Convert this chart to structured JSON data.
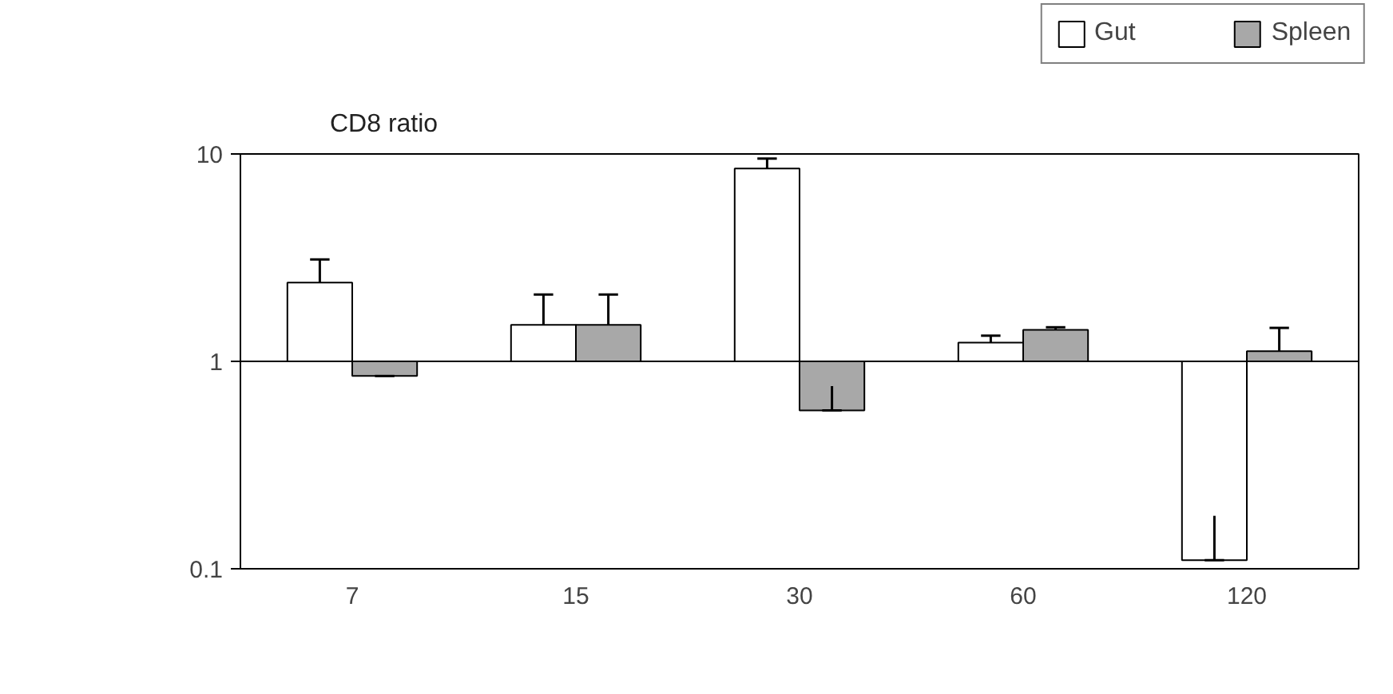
{
  "chart_data": {
    "type": "bar",
    "ylabel": "CD8 ratio",
    "categories": [
      "7",
      "15",
      "30",
      "60",
      "120"
    ],
    "series": [
      {
        "name": "Gut",
        "color": "#ffffff",
        "base": [
          1,
          1,
          1,
          1,
          1
        ],
        "values": [
          1.4,
          0.5,
          7.5,
          0.23,
          -0.89
        ],
        "errors": [
          [
            2.4,
            3.1
          ],
          [
            1.5,
            2.1
          ],
          [
            8.5,
            9.5
          ],
          [
            1.23,
            1.33
          ],
          [
            0.11,
            0.18
          ]
        ]
      },
      {
        "name": "Spleen",
        "color": "#a8a8a8",
        "base": [
          1,
          1,
          1,
          1,
          1
        ],
        "values": [
          -0.15,
          0.5,
          -0.42,
          0.42,
          0.12
        ],
        "errors": [
          [
            0.85,
            0.85
          ],
          [
            1.5,
            2.1
          ],
          [
            0.58,
            0.76
          ],
          [
            1.42,
            1.46
          ],
          [
            1.12,
            1.45
          ]
        ]
      }
    ],
    "log": true,
    "ylim": [
      0.1,
      10
    ],
    "yticks": [
      0.1,
      1,
      10
    ],
    "ref_lines": [
      {
        "axis": "y",
        "value": 1
      }
    ],
    "grid": false,
    "legend": "top right"
  }
}
